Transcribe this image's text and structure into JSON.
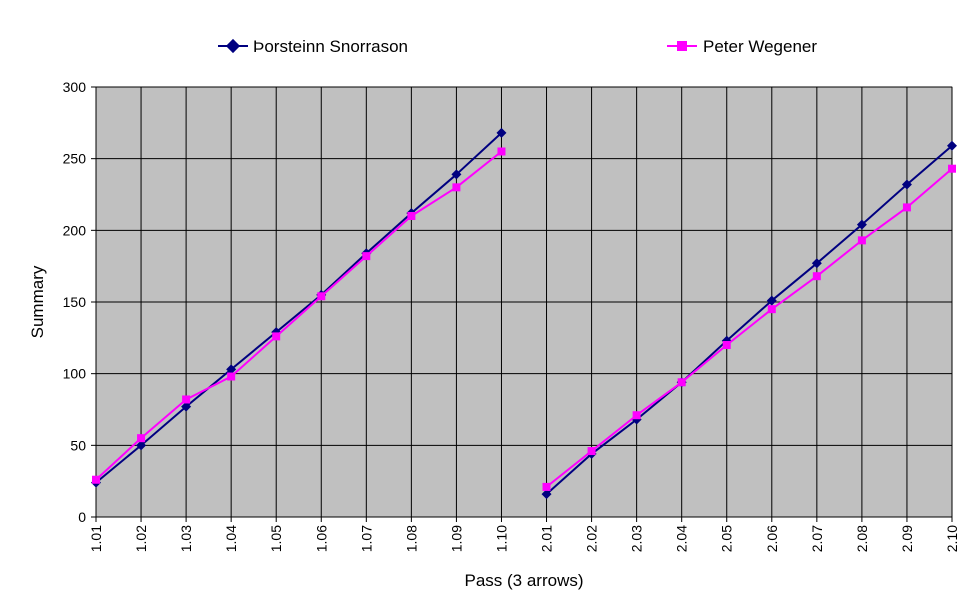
{
  "chart_data": {
    "type": "line",
    "title": "",
    "xlabel": "Pass (3 arrows)",
    "ylabel": "Summary",
    "ylim": [
      0,
      300
    ],
    "yticks": [
      "0",
      "50",
      "100",
      "150",
      "200",
      "250",
      "300"
    ],
    "grid": true,
    "legend_position": "top",
    "plot_background": "#c0c0c0",
    "categories": [
      "1.01",
      "1.02",
      "1.03",
      "1.04",
      "1.05",
      "1.06",
      "1.07",
      "1.08",
      "1.09",
      "1.10",
      "2.01",
      "2.02",
      "2.03",
      "2.04",
      "2.05",
      "2.06",
      "2.07",
      "2.08",
      "2.09",
      "2.10"
    ],
    "series": [
      {
        "name": "Þorsteinn Snorrason",
        "color": "#000080",
        "marker": "diamond",
        "segments": [
          [
            24,
            50,
            77,
            103,
            129,
            155,
            184,
            212,
            239,
            268
          ],
          [
            16,
            44,
            68,
            94,
            123,
            151,
            177,
            204,
            232,
            259
          ]
        ]
      },
      {
        "name": "Peter Wegener",
        "color": "#ff00ff",
        "marker": "square",
        "segments": [
          [
            26,
            55,
            82,
            98,
            126,
            154,
            182,
            210,
            230,
            255
          ],
          [
            21,
            46,
            71,
            94,
            120,
            145,
            168,
            193,
            216,
            243
          ]
        ]
      }
    ]
  }
}
